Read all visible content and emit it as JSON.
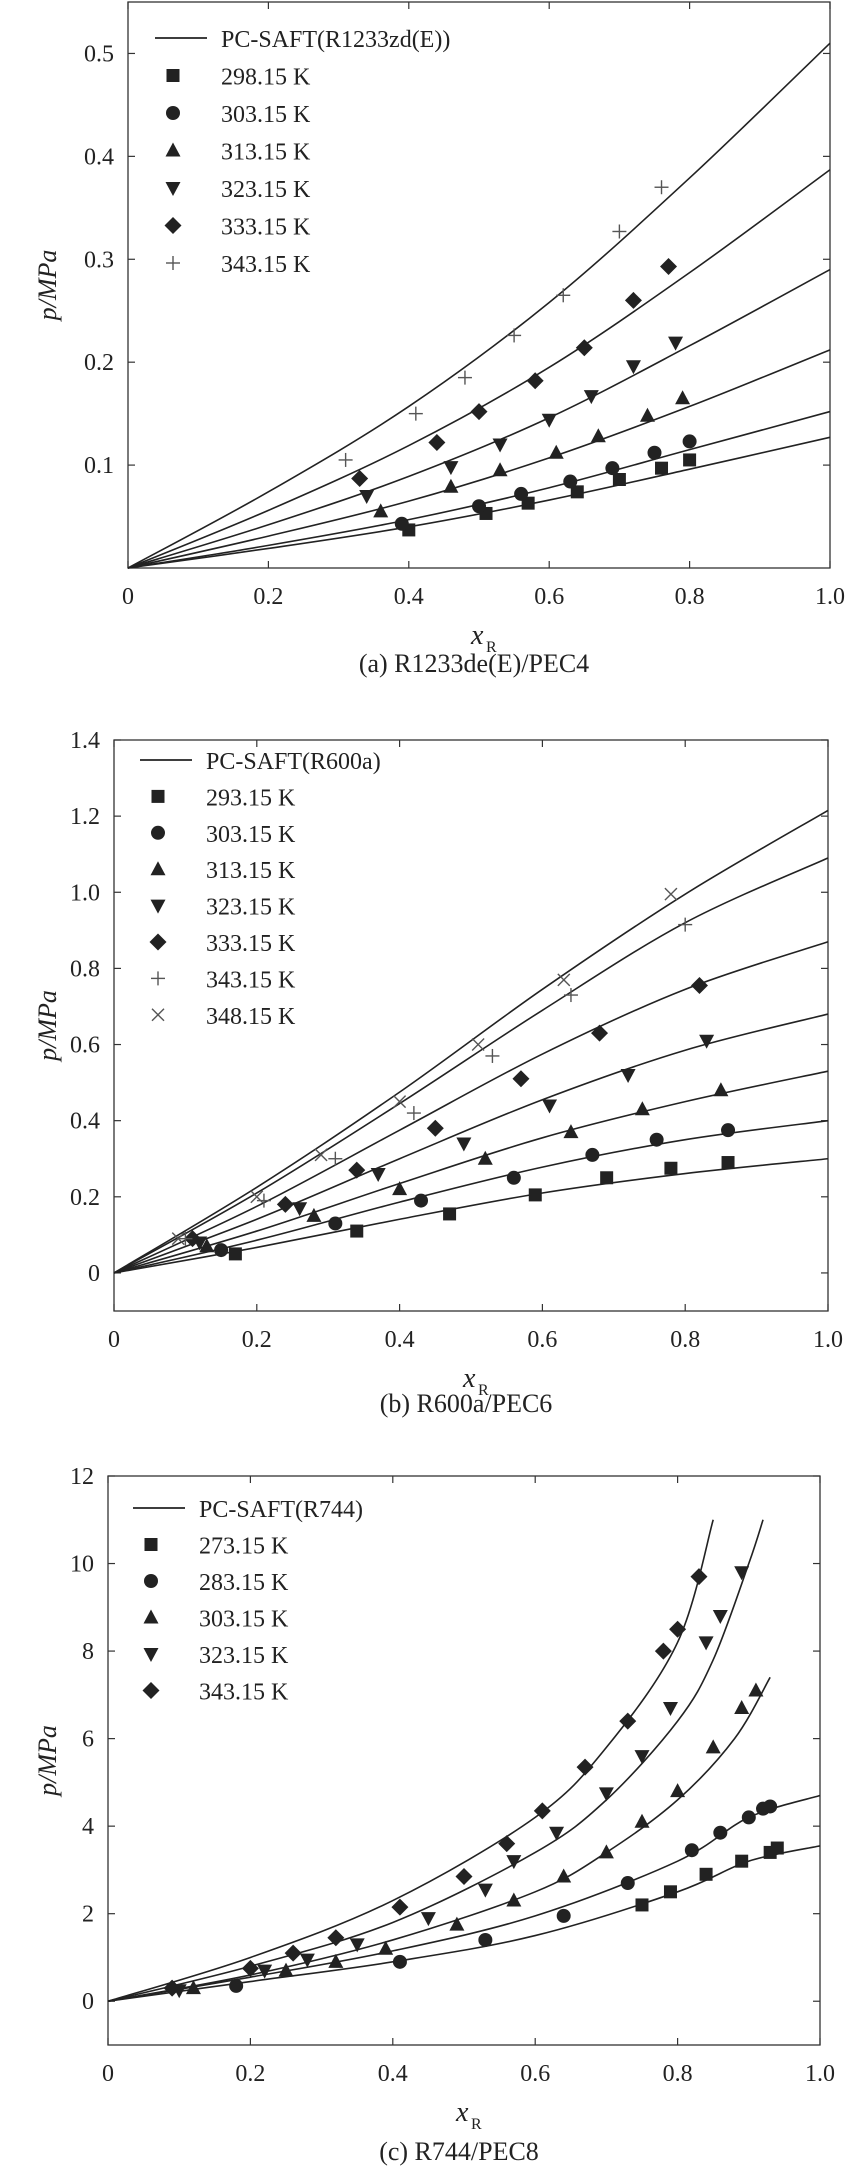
{
  "chart_data": [
    {
      "type": "scatter",
      "caption": "(a) R1233de(E)/PEC4",
      "xlabel": "x",
      "xlabel_sub": "R",
      "ylabel": "p/MPa",
      "xlim": [
        0,
        1.0
      ],
      "ylim": [
        0,
        0.55
      ],
      "xticks": [
        "0",
        "0.2",
        "0.4",
        "0.6",
        "0.8",
        "1.0"
      ],
      "xtick_values": [
        0,
        0.2,
        0.4,
        0.6,
        0.8,
        1.0
      ],
      "yticks": [
        "0.1",
        "0.2",
        "0.3",
        "0.4",
        "0.5"
      ],
      "ytick_values": [
        0.1,
        0.2,
        0.3,
        0.4,
        0.5
      ],
      "legend_position": "top-left",
      "model_label": "PC-SAFT(R1233zd(E))",
      "series": [
        {
          "name": "298.15 K",
          "marker": "square",
          "x": [
            0.4,
            0.51,
            0.57,
            0.64,
            0.7,
            0.76,
            0.8
          ],
          "y": [
            0.037,
            0.053,
            0.063,
            0.074,
            0.086,
            0.097,
            0.105
          ],
          "curve_x": [
            0,
            0.2,
            0.4,
            0.6,
            0.8,
            1.0
          ],
          "curve_y": [
            0,
            0.019,
            0.04,
            0.066,
            0.096,
            0.127
          ]
        },
        {
          "name": "303.15 K",
          "marker": "circle",
          "x": [
            0.39,
            0.5,
            0.56,
            0.63,
            0.69,
            0.75,
            0.8
          ],
          "y": [
            0.043,
            0.06,
            0.072,
            0.084,
            0.097,
            0.112,
            0.123
          ],
          "curve_x": [
            0,
            0.2,
            0.4,
            0.6,
            0.8,
            1.0
          ],
          "curve_y": [
            0,
            0.022,
            0.047,
            0.078,
            0.115,
            0.152
          ]
        },
        {
          "name": "313.15 K",
          "marker": "triangle-up",
          "x": [
            0.36,
            0.46,
            0.53,
            0.61,
            0.67,
            0.74,
            0.79
          ],
          "y": [
            0.055,
            0.079,
            0.095,
            0.112,
            0.128,
            0.148,
            0.165
          ],
          "curve_x": [
            0,
            0.2,
            0.4,
            0.6,
            0.8,
            1.0
          ],
          "curve_y": [
            0,
            0.031,
            0.065,
            0.107,
            0.157,
            0.212
          ]
        },
        {
          "name": "323.15 K",
          "marker": "triangle-down",
          "x": [
            0.34,
            0.46,
            0.53,
            0.6,
            0.66,
            0.72,
            0.78
          ],
          "y": [
            0.07,
            0.098,
            0.12,
            0.144,
            0.167,
            0.196,
            0.219
          ],
          "curve_x": [
            0,
            0.2,
            0.4,
            0.6,
            0.8,
            1.0
          ],
          "curve_y": [
            0,
            0.042,
            0.089,
            0.146,
            0.216,
            0.29
          ]
        },
        {
          "name": "333.15 K",
          "marker": "diamond",
          "x": [
            0.33,
            0.44,
            0.5,
            0.58,
            0.65,
            0.72,
            0.77
          ],
          "y": [
            0.087,
            0.122,
            0.152,
            0.182,
            0.214,
            0.26,
            0.293
          ],
          "curve_x": [
            0,
            0.2,
            0.4,
            0.6,
            0.8,
            1.0
          ],
          "curve_y": [
            0,
            0.056,
            0.119,
            0.195,
            0.287,
            0.387
          ]
        },
        {
          "name": "343.15 K",
          "marker": "plus",
          "x": [
            0.31,
            0.41,
            0.48,
            0.55,
            0.62,
            0.7,
            0.76
          ],
          "y": [
            0.105,
            0.15,
            0.185,
            0.226,
            0.265,
            0.327,
            0.37
          ],
          "curve_x": [
            0,
            0.2,
            0.4,
            0.6,
            0.8,
            1.0
          ],
          "curve_y": [
            0,
            0.074,
            0.157,
            0.258,
            0.379,
            0.51
          ]
        }
      ]
    },
    {
      "type": "scatter",
      "caption": "(b) R600a/PEC6",
      "xlabel": "x",
      "xlabel_sub": "R",
      "ylabel": "p/MPa",
      "xlim": [
        0,
        1.0
      ],
      "ylim": [
        -0.1,
        1.4
      ],
      "xticks": [
        "0",
        "0.2",
        "0.4",
        "0.6",
        "0.8",
        "1.0"
      ],
      "xtick_values": [
        0,
        0.2,
        0.4,
        0.6,
        0.8,
        1.0
      ],
      "yticks": [
        "0",
        "0.2",
        "0.4",
        "0.6",
        "0.8",
        "1.0",
        "1.2",
        "1.4"
      ],
      "ytick_values": [
        0,
        0.2,
        0.4,
        0.6,
        0.8,
        1.0,
        1.2,
        1.4
      ],
      "legend_position": "top-left",
      "model_label": "PC-SAFT(R600a)",
      "series": [
        {
          "name": "293.15 K",
          "marker": "square",
          "x": [
            0.17,
            0.34,
            0.47,
            0.59,
            0.69,
            0.78,
            0.86
          ],
          "y": [
            0.05,
            0.11,
            0.155,
            0.205,
            0.25,
            0.275,
            0.29
          ],
          "curve_x": [
            0,
            0.2,
            0.4,
            0.6,
            0.8,
            1.0
          ],
          "curve_y": [
            0,
            0.067,
            0.141,
            0.21,
            0.261,
            0.3
          ]
        },
        {
          "name": "303.15 K",
          "marker": "circle",
          "x": [
            0.15,
            0.31,
            0.43,
            0.56,
            0.67,
            0.76,
            0.86
          ],
          "y": [
            0.06,
            0.13,
            0.19,
            0.25,
            0.31,
            0.35,
            0.375
          ],
          "curve_x": [
            0,
            0.2,
            0.4,
            0.6,
            0.8,
            1.0
          ],
          "curve_y": [
            0,
            0.086,
            0.186,
            0.278,
            0.35,
            0.4
          ]
        },
        {
          "name": "313.15 K",
          "marker": "triangle-up",
          "x": [
            0.13,
            0.28,
            0.4,
            0.52,
            0.64,
            0.74,
            0.85
          ],
          "y": [
            0.07,
            0.15,
            0.22,
            0.3,
            0.37,
            0.43,
            0.48
          ],
          "curve_x": [
            0,
            0.2,
            0.4,
            0.6,
            0.8,
            1.0
          ],
          "curve_y": [
            0,
            0.11,
            0.235,
            0.355,
            0.45,
            0.53
          ]
        },
        {
          "name": "323.15 K",
          "marker": "triangle-down",
          "x": [
            0.12,
            0.26,
            0.37,
            0.49,
            0.61,
            0.72,
            0.83
          ],
          "y": [
            0.08,
            0.17,
            0.26,
            0.34,
            0.44,
            0.52,
            0.61
          ],
          "curve_x": [
            0,
            0.2,
            0.4,
            0.6,
            0.8,
            1.0
          ],
          "curve_y": [
            0,
            0.141,
            0.3,
            0.455,
            0.585,
            0.68
          ]
        },
        {
          "name": "333.15 K",
          "marker": "diamond",
          "x": [
            0.11,
            0.24,
            0.34,
            0.45,
            0.57,
            0.68,
            0.82
          ],
          "y": [
            0.09,
            0.18,
            0.27,
            0.38,
            0.51,
            0.63,
            0.755
          ],
          "curve_x": [
            0,
            0.2,
            0.4,
            0.6,
            0.8,
            1.0
          ],
          "curve_y": [
            0,
            0.175,
            0.375,
            0.575,
            0.745,
            0.87
          ]
        },
        {
          "name": "343.15 K",
          "marker": "plus",
          "x": [
            0.1,
            0.21,
            0.31,
            0.42,
            0.53,
            0.64,
            0.8
          ],
          "y": [
            0.09,
            0.19,
            0.3,
            0.42,
            0.57,
            0.73,
            0.915
          ],
          "curve_x": [
            0,
            0.2,
            0.4,
            0.6,
            0.8,
            1.0
          ],
          "curve_y": [
            0,
            0.21,
            0.445,
            0.69,
            0.92,
            1.09
          ]
        },
        {
          "name": "348.15 K",
          "marker": "cross",
          "x": [
            0.09,
            0.2,
            0.29,
            0.4,
            0.51,
            0.63,
            0.78
          ],
          "y": [
            0.09,
            0.2,
            0.31,
            0.45,
            0.6,
            0.77,
            0.995
          ],
          "curve_x": [
            0,
            0.2,
            0.4,
            0.6,
            0.8,
            1.0
          ],
          "curve_y": [
            0,
            0.225,
            0.475,
            0.745,
            0.995,
            1.215
          ]
        }
      ]
    },
    {
      "type": "scatter",
      "caption": "(c) R744/PEC8",
      "xlabel": "x",
      "xlabel_sub": "R",
      "ylabel": "p/MPa",
      "xlim": [
        0,
        1.0
      ],
      "ylim": [
        -1,
        12
      ],
      "xticks": [
        "0",
        "0.2",
        "0.4",
        "0.6",
        "0.8",
        "1.0"
      ],
      "xtick_values": [
        0,
        0.2,
        0.4,
        0.6,
        0.8,
        1.0
      ],
      "yticks": [
        "0",
        "2",
        "4",
        "6",
        "8",
        "10",
        "12"
      ],
      "ytick_values": [
        0,
        2,
        4,
        6,
        8,
        10,
        12
      ],
      "legend_position": "top-left",
      "model_label": "PC-SAFT(R744)",
      "series": [
        {
          "name": "273.15 K",
          "marker": "square",
          "x": [
            0.75,
            0.79,
            0.84,
            0.89,
            0.93,
            0.94
          ],
          "y": [
            2.2,
            2.5,
            2.9,
            3.2,
            3.4,
            3.5
          ],
          "curve_x": [
            0,
            0.2,
            0.4,
            0.6,
            0.8,
            0.9,
            1.0
          ],
          "curve_y": [
            0,
            0.45,
            0.9,
            1.5,
            2.5,
            3.2,
            3.55
          ]
        },
        {
          "name": "283.15 K",
          "marker": "circle",
          "x": [
            0.18,
            0.41,
            0.53,
            0.64,
            0.73,
            0.82,
            0.86,
            0.9,
            0.92,
            0.93
          ],
          "y": [
            0.35,
            0.9,
            1.4,
            1.95,
            2.7,
            3.45,
            3.85,
            4.2,
            4.4,
            4.45
          ],
          "curve_x": [
            0,
            0.2,
            0.4,
            0.6,
            0.8,
            0.9,
            1.0
          ],
          "curve_y": [
            0,
            0.55,
            1.15,
            1.95,
            3.2,
            4.2,
            4.7
          ]
        },
        {
          "name": "303.15 K",
          "marker": "triangle-up",
          "x": [
            0.12,
            0.25,
            0.32,
            0.39,
            0.49,
            0.57,
            0.64,
            0.7,
            0.75,
            0.8,
            0.85,
            0.89,
            0.91
          ],
          "y": [
            0.3,
            0.7,
            0.9,
            1.2,
            1.75,
            2.3,
            2.85,
            3.4,
            4.1,
            4.8,
            5.8,
            6.7,
            7.1
          ],
          "curve_x": [
            0,
            0.2,
            0.4,
            0.6,
            0.7,
            0.8,
            0.88,
            0.93
          ],
          "curve_y": [
            0,
            0.6,
            1.4,
            2.5,
            3.4,
            4.6,
            6.0,
            7.4
          ]
        },
        {
          "name": "323.15 K",
          "marker": "triangle-down",
          "x": [
            0.1,
            0.22,
            0.28,
            0.35,
            0.45,
            0.53,
            0.57,
            0.63,
            0.7,
            0.75,
            0.79,
            0.84,
            0.86,
            0.89
          ],
          "y": [
            0.25,
            0.7,
            0.95,
            1.3,
            1.9,
            2.55,
            3.2,
            3.85,
            4.75,
            5.6,
            6.7,
            8.2,
            8.8,
            9.8
          ],
          "curve_x": [
            0,
            0.2,
            0.4,
            0.6,
            0.7,
            0.8,
            0.85,
            0.9,
            0.92
          ],
          "curve_y": [
            0,
            0.8,
            1.8,
            3.4,
            4.6,
            6.4,
            7.8,
            10.0,
            11.0
          ]
        },
        {
          "name": "343.15 K",
          "marker": "diamond",
          "x": [
            0.09,
            0.2,
            0.26,
            0.32,
            0.41,
            0.5,
            0.56,
            0.61,
            0.67,
            0.73,
            0.78,
            0.8,
            0.83
          ],
          "y": [
            0.3,
            0.75,
            1.1,
            1.45,
            2.15,
            2.85,
            3.6,
            4.35,
            5.35,
            6.4,
            8.0,
            8.5,
            9.7
          ],
          "curve_x": [
            0,
            0.2,
            0.4,
            0.6,
            0.7,
            0.8,
            0.85
          ],
          "curve_y": [
            0,
            1.0,
            2.3,
            4.2,
            5.8,
            8.2,
            11.0
          ]
        }
      ]
    }
  ]
}
